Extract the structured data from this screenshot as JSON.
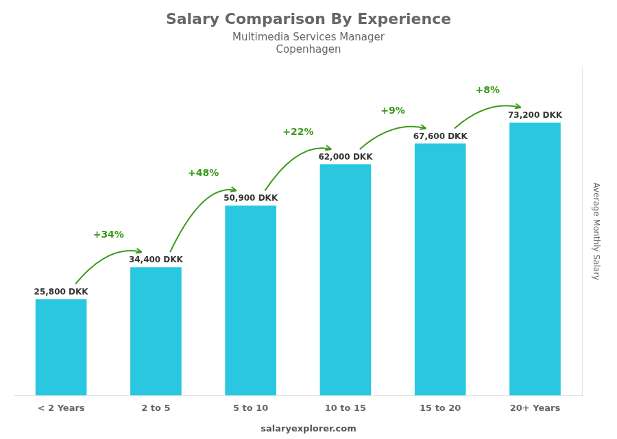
{
  "chart_data": {
    "type": "bar",
    "title": "Salary Comparison By Experience",
    "subtitle": [
      "Multimedia Services Manager",
      "Copenhagen"
    ],
    "y_label": "Average Monthly Salary",
    "categories": [
      "< 2 Years",
      "2 to 5",
      "5 to 10",
      "10 to 15",
      "15 to 20",
      "20+ Years"
    ],
    "values": [
      25800,
      34400,
      50900,
      62000,
      67600,
      73200
    ],
    "value_labels": [
      "25,800 DKK",
      "34,400 DKK",
      "50,900 DKK",
      "62,000 DKK",
      "67,600 DKK",
      "73,200 DKK"
    ],
    "data_labels": true,
    "annotations": [
      "+34%",
      "+48%",
      "+22%",
      "+9%",
      "+8%"
    ],
    "footer": "salaryexplorer.com",
    "color": "#29c8e0",
    "ylim": [
      0,
      88000
    ],
    "grid": false,
    "tick_labels": "x"
  }
}
